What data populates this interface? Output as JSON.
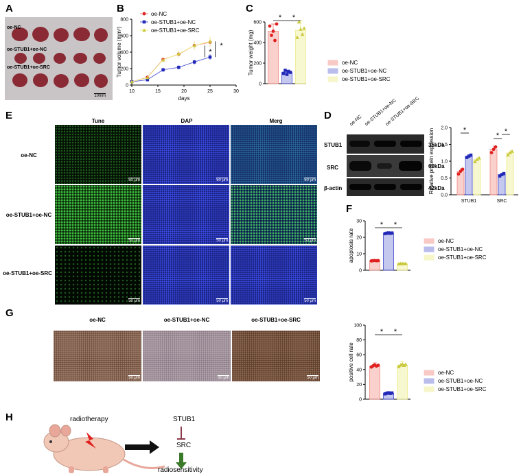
{
  "panels": {
    "A": "A",
    "B": "B",
    "C": "C",
    "D": "D",
    "E": "E",
    "F": "F",
    "G": "G",
    "H": "H"
  },
  "groups": [
    "oe-NC",
    "oe-STUB1+oe-NC",
    "oe-STUB1+oe-SRC"
  ],
  "colors": {
    "nc": "#f08a80",
    "stub": "#3d45c8",
    "src": "#ecec8a"
  },
  "panelA": {
    "labels": [
      "oe-NC",
      "oe-STUB1+oe-NC",
      "oe-STUB1+oe-SRC"
    ],
    "scale": "10mm"
  },
  "panelE": {
    "columns": [
      "Tune",
      "DAP",
      "Merg"
    ],
    "rows": [
      "oe-NC",
      "oe-STUB1+oe-NC",
      "oe-STUB1+oe-SRC"
    ],
    "scale": "50 μm"
  },
  "panelD": {
    "lanes": [
      "oe-NC",
      "oe-STUB1+oe-NC",
      "oe-STUB1+oe-SRC"
    ],
    "proteins": [
      "STUB1",
      "SRC",
      "β-actin"
    ],
    "kda": [
      "35kDa",
      "60kDa",
      "42kDa"
    ]
  },
  "panelG": {
    "columns": [
      "oe-NC",
      "oe-STUB1+oe-NC",
      "oe-STUB1+oe-SRC"
    ],
    "scale": "50 μm"
  },
  "panelH": {
    "radiotherapy": "radiotherapy",
    "stub1": "STUB1",
    "src": "SRC",
    "outcome": "radiosensitivity"
  },
  "chart_data": [
    {
      "id": "B",
      "type": "line",
      "xlabel": "days",
      "ylabel": "Tumor volume (mm³)",
      "xlim": [
        10,
        30
      ],
      "ylim": [
        0,
        800
      ],
      "xticks": [
        10,
        15,
        20,
        25,
        30
      ],
      "yticks": [
        0,
        200,
        400,
        600,
        800
      ],
      "x": [
        10,
        13,
        16,
        19,
        22,
        25
      ],
      "series": [
        {
          "name": "oe-NC",
          "values": [
            40,
            95,
            310,
            375,
            480,
            520
          ],
          "err": [
            5,
            10,
            30,
            40,
            50,
            55
          ]
        },
        {
          "name": "oe-STUB1+oe-NC",
          "values": [
            40,
            65,
            185,
            215,
            280,
            340
          ],
          "err": [
            5,
            10,
            25,
            25,
            30,
            35
          ]
        },
        {
          "name": "oe-STUB1+oe-SRC",
          "values": [
            40,
            90,
            305,
            380,
            480,
            530
          ],
          "err": [
            5,
            10,
            30,
            40,
            50,
            60
          ]
        }
      ],
      "annotations": [
        "*",
        "*"
      ]
    },
    {
      "id": "C",
      "type": "bar",
      "ylabel": "Tumor weight (mg)",
      "ylim": [
        0,
        600
      ],
      "yticks": [
        0,
        200,
        400,
        600
      ],
      "categories": [
        "oe-NC",
        "oe-STUB1+oe-NC",
        "oe-STUB1+oe-SRC"
      ],
      "values": [
        510,
        110,
        520
      ],
      "err": [
        70,
        20,
        90
      ],
      "points": [
        [
          560,
          470,
          510,
          420,
          580
        ],
        [
          100,
          130,
          90,
          120,
          110
        ],
        [
          450,
          600,
          530,
          480,
          540
        ]
      ],
      "annotations": [
        "*",
        "*"
      ]
    },
    {
      "id": "D",
      "type": "bar",
      "ylabel": "Relative protein expression",
      "ylim": [
        0,
        2.0
      ],
      "yticks": [
        0.0,
        0.5,
        1.0,
        1.5,
        2.0
      ],
      "categories": [
        "STUB1",
        "SRC"
      ],
      "series": [
        {
          "name": "oe-NC",
          "values": [
            0.7,
            1.35
          ],
          "err": [
            0.1,
            0.12
          ]
        },
        {
          "name": "oe-STUB1+oe-NC",
          "values": [
            1.15,
            0.6
          ],
          "err": [
            0.05,
            0.05
          ]
        },
        {
          "name": "oe-STUB1+oe-SRC",
          "values": [
            1.05,
            1.25
          ],
          "err": [
            0.08,
            0.08
          ]
        }
      ],
      "annotations": [
        "*",
        "*",
        "*"
      ]
    },
    {
      "id": "F",
      "type": "bar",
      "ylabel": "apoptosis rate",
      "ylim": [
        0,
        30
      ],
      "yticks": [
        0,
        10,
        20,
        30
      ],
      "categories": [
        "oe-NC",
        "oe-STUB1+oe-NC",
        "oe-STUB1+oe-SRC"
      ],
      "values": [
        5.8,
        22.5,
        4.0
      ],
      "err": [
        0.3,
        0.6,
        0.3
      ],
      "annotations": [
        "*",
        "*"
      ]
    },
    {
      "id": "G",
      "type": "bar",
      "ylabel": "positive cell rate",
      "ylim": [
        0,
        100
      ],
      "yticks": [
        0,
        20,
        40,
        60,
        80,
        100
      ],
      "categories": [
        "oe-NC",
        "oe-STUB1+oe-NC",
        "oe-STUB1+oe-SRC"
      ],
      "values": [
        45,
        8,
        46
      ],
      "err": [
        4,
        2,
        5
      ],
      "annotations": [
        "*",
        "*"
      ]
    }
  ]
}
